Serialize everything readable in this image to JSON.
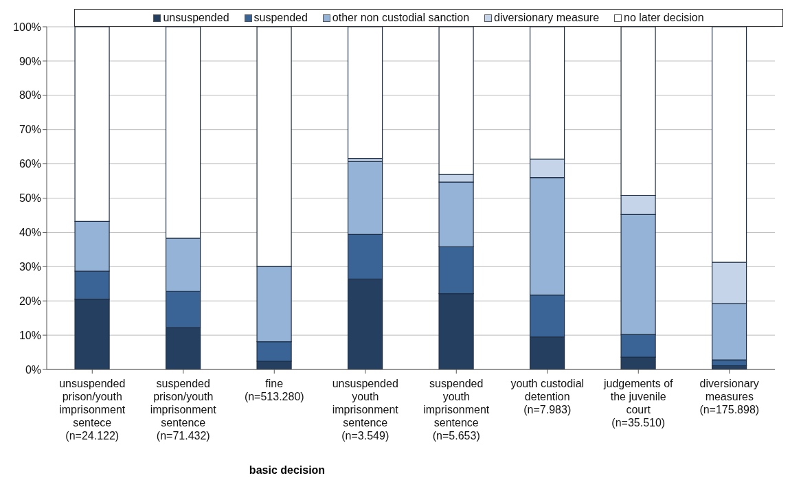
{
  "chart_data": {
    "type": "bar",
    "stacked": true,
    "xlabel": "basic decision",
    "categories": [
      "unsuspended\nprison/youth\nimprisonment\nsentece\n(n=24.122)",
      "suspended\nprison/youth\nimprisonment\nsentence\n(n=71.432)",
      "fine\n(n=513.280)",
      "unsuspended\nyouth\nimprisonment\nsentence\n(n=3.549)",
      "suspended\nyouth\nimprisonment\nsentence\n(n=5.653)",
      "youth custodial\ndetention\n(n=7.983)",
      "judgements of\nthe juvenile\ncourt\n(n=35.510)",
      "diversionary\nmeasures\n(n=175.898)"
    ],
    "series": [
      {
        "name": "unsuspended",
        "color": "#243f60",
        "values": [
          20.5,
          12.2,
          2.4,
          26.4,
          22.1,
          9.5,
          3.6,
          1.1
        ]
      },
      {
        "name": "suspended",
        "color": "#3a6496",
        "values": [
          8.2,
          10.6,
          5.7,
          13.0,
          13.7,
          12.2,
          6.6,
          1.7
        ]
      },
      {
        "name": "other non custodial sanction",
        "color": "#95b3d7",
        "values": [
          14.5,
          15.5,
          22.0,
          21.3,
          18.9,
          34.3,
          35.0,
          16.4
        ]
      },
      {
        "name": "diversionary measure",
        "color": "#c5d4e8",
        "values": [
          0,
          0,
          0,
          0.9,
          2.2,
          5.4,
          5.6,
          12.1
        ]
      },
      {
        "name": "no later decision",
        "color": "#ffffff",
        "values": [
          56.8,
          61.7,
          69.9,
          38.4,
          43.1,
          38.6,
          49.2,
          68.7
        ]
      }
    ],
    "ylim": [
      0,
      100
    ],
    "yticks": [
      {
        "value": 0,
        "label": "0%"
      },
      {
        "value": 10,
        "label": "10%"
      },
      {
        "value": 20,
        "label": "20%"
      },
      {
        "value": 30,
        "label": "30%"
      },
      {
        "value": 40,
        "label": "40%"
      },
      {
        "value": 50,
        "label": "50%"
      },
      {
        "value": 60,
        "label": "60%"
      },
      {
        "value": 70,
        "label": "70%"
      },
      {
        "value": 80,
        "label": "80%"
      },
      {
        "value": 90,
        "label": "90%"
      },
      {
        "value": 100,
        "label": "100%"
      }
    ],
    "grid": "y",
    "legend": "top"
  }
}
